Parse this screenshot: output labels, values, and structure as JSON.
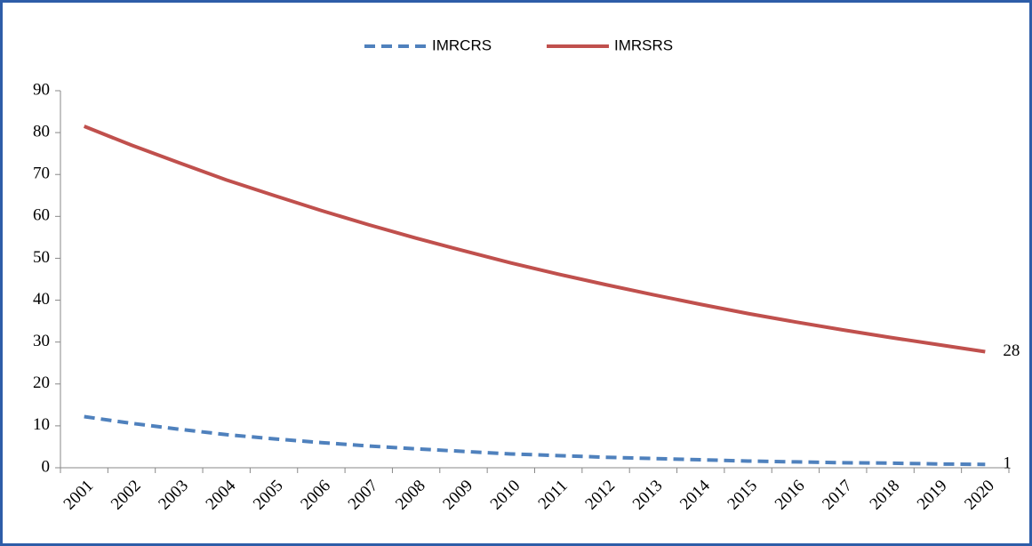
{
  "chart_data": {
    "type": "line",
    "categories": [
      "2001",
      "2002",
      "2003",
      "2004",
      "2005",
      "2006",
      "2007",
      "2008",
      "2009",
      "2010",
      "2011",
      "2012",
      "2013",
      "2014",
      "2015",
      "2016",
      "2017",
      "2018",
      "2019",
      "2020"
    ],
    "series": [
      {
        "name": "IMRCRS",
        "color": "#4f81bd",
        "dash": true,
        "values": [
          12.2,
          10.6,
          9.2,
          7.9,
          6.9,
          6.0,
          5.2,
          4.5,
          3.9,
          3.3,
          2.9,
          2.5,
          2.2,
          1.9,
          1.6,
          1.4,
          1.2,
          1.1,
          0.9,
          0.8
        ],
        "value_labels": [
          null,
          null,
          null,
          null,
          null,
          null,
          null,
          null,
          null,
          null,
          null,
          null,
          null,
          null,
          null,
          null,
          null,
          null,
          null,
          "1"
        ]
      },
      {
        "name": "IMRSRS",
        "color": "#c0504d",
        "dash": false,
        "values": [
          81.5,
          77.0,
          72.8,
          68.7,
          65.0,
          61.4,
          58.0,
          54.8,
          51.8,
          48.9,
          46.2,
          43.7,
          41.3,
          39.0,
          36.8,
          34.8,
          32.9,
          31.1,
          29.4,
          27.7
        ],
        "value_labels": [
          null,
          null,
          null,
          null,
          null,
          null,
          null,
          null,
          null,
          null,
          null,
          null,
          null,
          null,
          null,
          null,
          null,
          null,
          null,
          "28"
        ]
      }
    ],
    "ylim": [
      0,
      90
    ],
    "yticks": [
      0,
      10,
      20,
      30,
      40,
      50,
      60,
      70,
      80,
      90
    ],
    "grid": false,
    "legend": "top"
  }
}
